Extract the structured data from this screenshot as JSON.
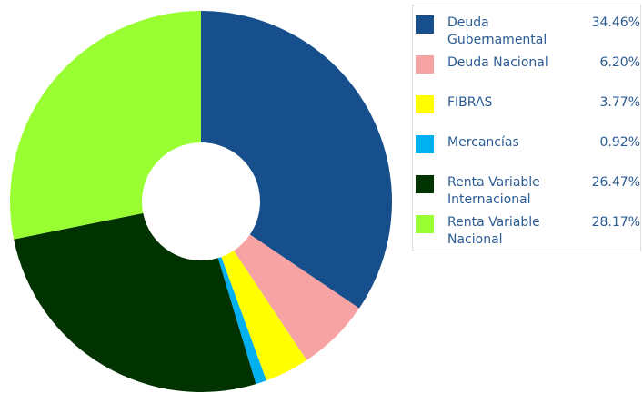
{
  "chart_data": {
    "type": "donut",
    "categories": [
      "Deuda Gubernamental",
      "Deuda Nacional",
      "FIBRAS",
      "Mercancías",
      "Renta Variable Internacional",
      "Renta Variable Nacional"
    ],
    "values": [
      34.46,
      6.2,
      3.77,
      0.92,
      26.47,
      28.17
    ],
    "value_labels": [
      "34.46%",
      "6.20%",
      "3.77%",
      "0.92%",
      "26.47%",
      "28.17%"
    ],
    "colors": [
      "#174f8c",
      "#f7a3a3",
      "#ffff00",
      "#00b0f0",
      "#003300",
      "#99ff33"
    ],
    "legend": "right"
  }
}
